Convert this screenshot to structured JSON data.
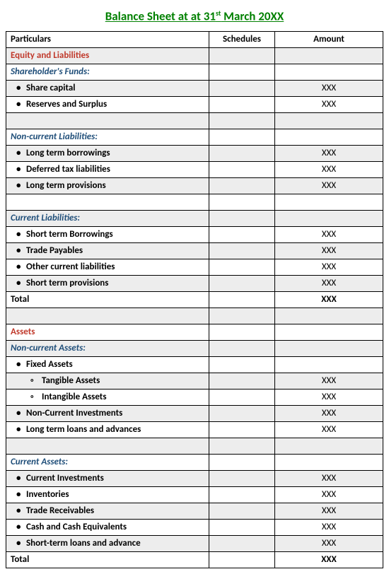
{
  "title_prefix": "Balance Sheet at at 31",
  "title_super": "st",
  "title_suffix": " March 20XX",
  "columns": {
    "particulars": "Particulars",
    "schedules": "Schedules",
    "amount": "Amount"
  },
  "colors": {
    "title": "#008000",
    "section_red": "#c0392b",
    "section_blue": "#1f4e79",
    "shade": "#ededed",
    "border": "#000000"
  },
  "rows": [
    {
      "type": "section-red",
      "label": "Equity and Liabilities",
      "shaded": true
    },
    {
      "type": "section-blue",
      "label": "Shareholder's Funds:",
      "shaded": false
    },
    {
      "type": "item",
      "label": "Share capital",
      "amount": "XXX",
      "shaded": true
    },
    {
      "type": "item",
      "label": "Reserves and Surplus",
      "amount": "XXX",
      "shaded": false
    },
    {
      "type": "blank",
      "shaded": true
    },
    {
      "type": "section-blue",
      "label": "Non-current Liabilities:",
      "shaded": false
    },
    {
      "type": "item",
      "label": "Long term borrowings",
      "amount": "XXX",
      "shaded": true
    },
    {
      "type": "item",
      "label": "Deferred tax liabilities",
      "amount": "XXX",
      "shaded": false
    },
    {
      "type": "item",
      "label": "Long term provisions",
      "amount": "XXX",
      "shaded": true
    },
    {
      "type": "blank",
      "shaded": false
    },
    {
      "type": "section-blue",
      "label": "Current Liabilities:",
      "shaded": true
    },
    {
      "type": "item",
      "label": "Short term Borrowings",
      "amount": "XXX",
      "shaded": false
    },
    {
      "type": "item",
      "label": "Trade Payables",
      "amount": "XXX",
      "shaded": true
    },
    {
      "type": "item",
      "label": "Other current liabilities",
      "amount": "XXX",
      "shaded": false
    },
    {
      "type": "item",
      "label": "Short term provisions",
      "amount": "XXX",
      "shaded": true
    },
    {
      "type": "total",
      "label": "Total",
      "amount": "XXX",
      "shaded": false
    },
    {
      "type": "blank",
      "shaded": true
    },
    {
      "type": "section-red",
      "label": "Assets",
      "shaded": false
    },
    {
      "type": "section-blue",
      "label": "Non-current Assets:",
      "shaded": true
    },
    {
      "type": "item",
      "label": "Fixed Assets",
      "shaded": false
    },
    {
      "type": "subitem",
      "label": "Tangible Assets",
      "amount": "XXX",
      "shaded": true
    },
    {
      "type": "subitem",
      "label": "Intangible Assets",
      "amount": "XXX",
      "shaded": false
    },
    {
      "type": "item",
      "label": "Non-Current Investments",
      "amount": "XXX",
      "shaded": true
    },
    {
      "type": "item",
      "label": "Long term loans and advances",
      "amount": "XXX",
      "shaded": false
    },
    {
      "type": "blank",
      "shaded": true
    },
    {
      "type": "section-blue",
      "label": "Current Assets:",
      "shaded": false
    },
    {
      "type": "item",
      "label": "Current Investments",
      "amount": "XXX",
      "shaded": true
    },
    {
      "type": "item",
      "label": "Inventories",
      "amount": "XXX",
      "shaded": false
    },
    {
      "type": "item",
      "label": "Trade Receivables",
      "amount": "XXX",
      "shaded": true
    },
    {
      "type": "item",
      "label": "Cash and Cash Equivalents",
      "amount": "XXX",
      "shaded": false
    },
    {
      "type": "item",
      "label": "Short-term loans and advance",
      "amount": "XXX",
      "shaded": true
    },
    {
      "type": "total",
      "label": "Total",
      "amount": "XXX",
      "shaded": false
    }
  ]
}
